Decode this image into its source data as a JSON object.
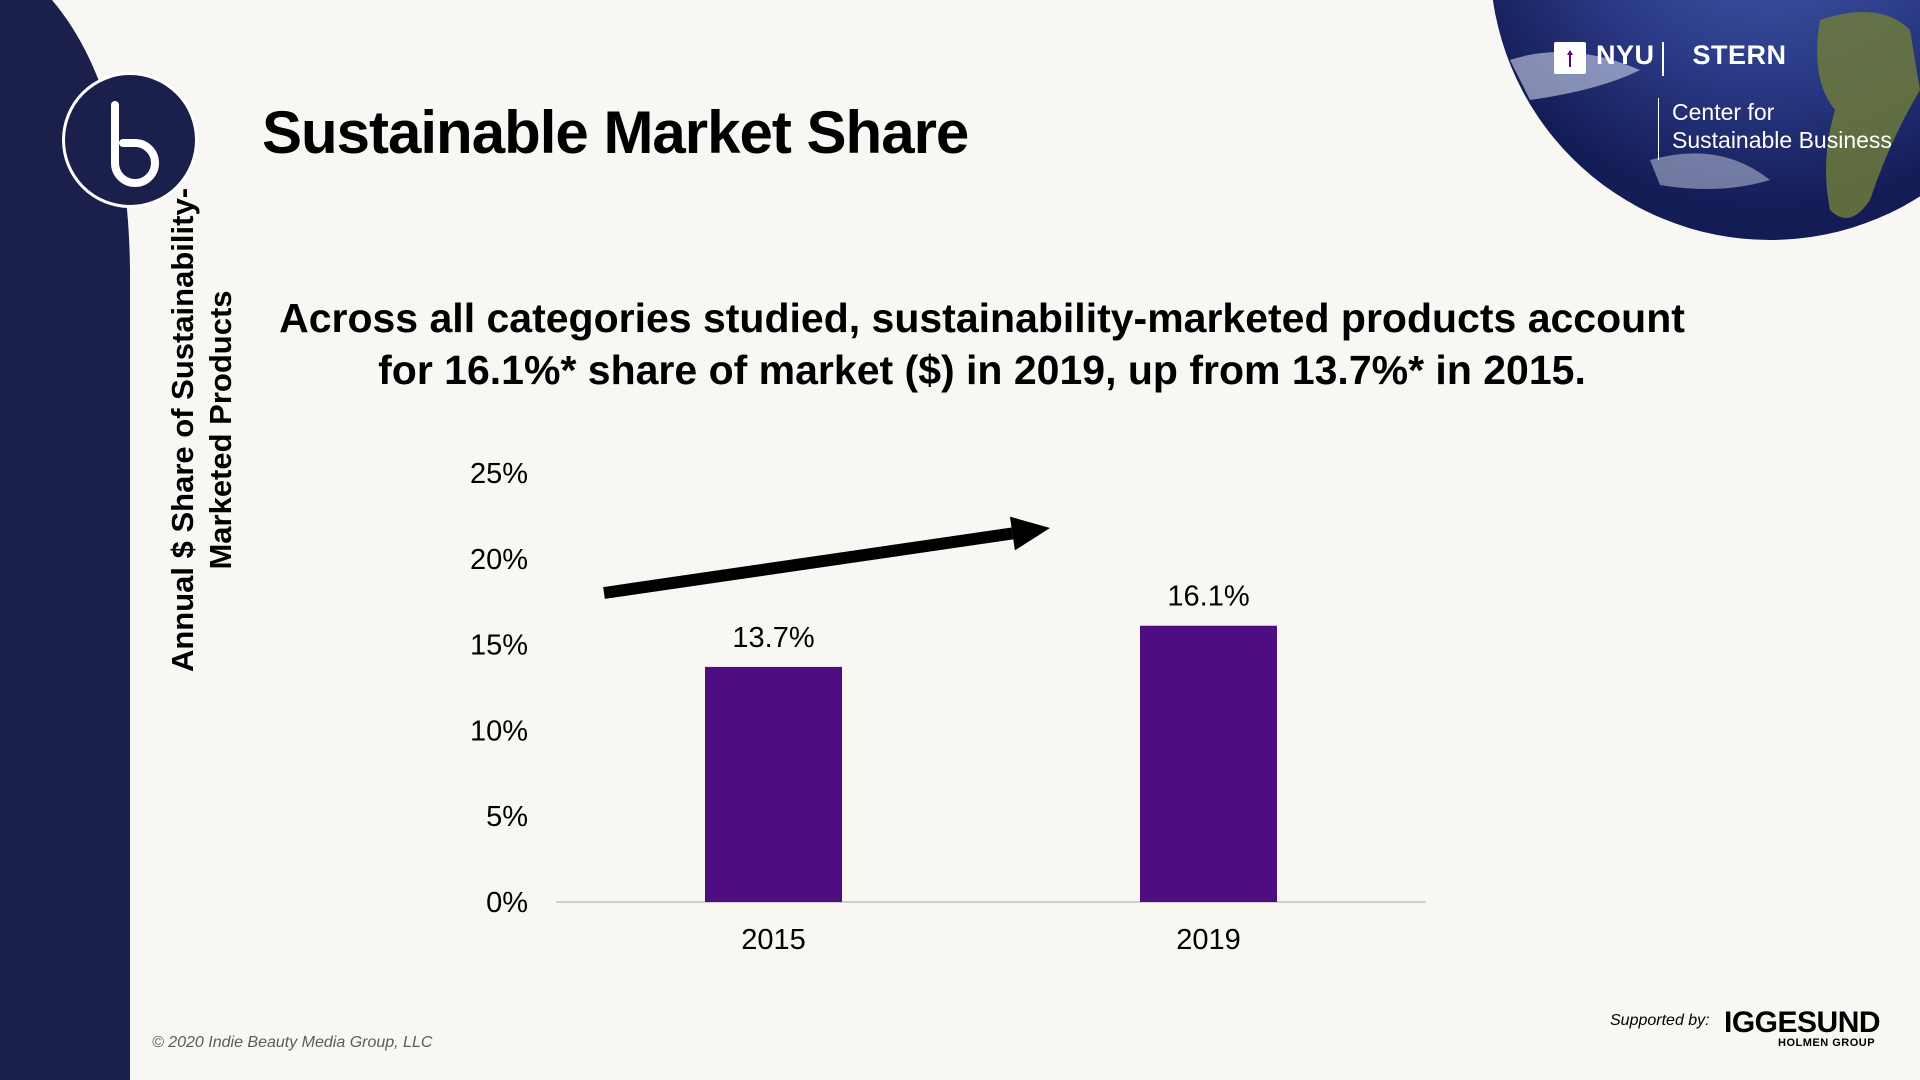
{
  "page": {
    "title": "Sustainable Market Share",
    "headline": "Across all categories studied, sustainability-marketed products account for 16.1%* share of market ($) in 2019, up from 13.7%* in 2015.",
    "footer": "© 2020 Indie Beauty Media Group, LLC",
    "supported_by": "Supported by:",
    "sponsor_name": "IGGESUND",
    "sponsor_sub": "HOLMEN GROUP"
  },
  "branding": {
    "logo_letter": "b",
    "nyu_name": "NYU",
    "nyu_school": "STERN",
    "nyu_center_line1": "Center for",
    "nyu_center_line2": "Sustainable Business"
  },
  "colors": {
    "sidebar": "#1b1f4b",
    "bar": "#4f0d82",
    "arrow": "#000000",
    "globe_ocean": "#26357a",
    "globe_land": "#6d7a3b"
  },
  "chart_data": {
    "type": "bar",
    "categories": [
      "2015",
      "2019"
    ],
    "values": [
      13.7,
      16.1
    ],
    "data_labels": [
      "13.7%",
      "16.1%"
    ],
    "ylabel": "Annual $ Share of Sustainability-Marketed Products",
    "ylim": [
      0,
      25
    ],
    "yticks": [
      0,
      5,
      10,
      15,
      20,
      25
    ],
    "ytick_labels": [
      "0%",
      "5%",
      "10%",
      "15%",
      "20%",
      "25%"
    ],
    "grid": false,
    "trend_arrow": "upward"
  }
}
